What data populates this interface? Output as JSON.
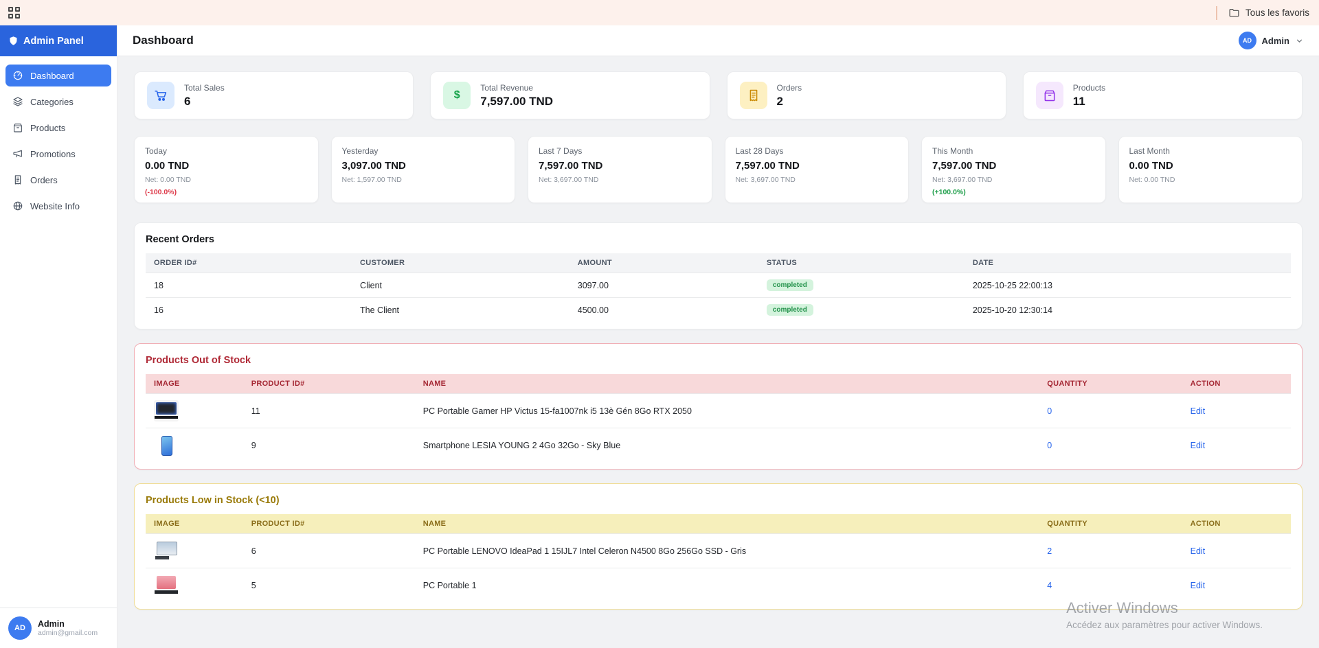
{
  "browser_bar": {
    "favorites_label": "Tous les favoris"
  },
  "sidebar": {
    "title": "Admin Panel",
    "items": [
      {
        "label": "Dashboard",
        "icon": "speedometer-icon",
        "active": true
      },
      {
        "label": "Categories",
        "icon": "layers-icon",
        "active": false
      },
      {
        "label": "Products",
        "icon": "box-icon",
        "active": false
      },
      {
        "label": "Promotions",
        "icon": "megaphone-icon",
        "active": false
      },
      {
        "label": "Orders",
        "icon": "receipt-icon",
        "active": false
      },
      {
        "label": "Website Info",
        "icon": "globe-icon",
        "active": false
      }
    ],
    "user": {
      "initials": "AD",
      "name": "Admin",
      "email": "admin@gmail.com"
    }
  },
  "header": {
    "title": "Dashboard",
    "user": {
      "initials": "AD",
      "name": "Admin"
    }
  },
  "stats": [
    {
      "label": "Total Sales",
      "value": "6",
      "icon": "cart-icon",
      "color": "#2563eb",
      "bg": "#dbeafe"
    },
    {
      "label": "Total Revenue",
      "value": "7,597.00 TND",
      "icon": "dollar-icon",
      "color": "#16a34a",
      "bg": "#d9f7e4"
    },
    {
      "label": "Orders",
      "value": "2",
      "icon": "receipt-icon",
      "color": "#ca8a04",
      "bg": "#fdf0c2"
    },
    {
      "label": "Products",
      "value": "11",
      "icon": "box-icon",
      "color": "#9333ea",
      "bg": "#f5e8fd"
    }
  ],
  "periods": [
    {
      "label": "Today",
      "value": "0.00 TND",
      "net": "Net: 0.00 TND",
      "change": "(-100.0%)",
      "change_color": "#dc3545"
    },
    {
      "label": "Yesterday",
      "value": "3,097.00 TND",
      "net": "Net: 1,597.00 TND",
      "change": "",
      "change_color": ""
    },
    {
      "label": "Last 7 Days",
      "value": "7,597.00 TND",
      "net": "Net: 3,697.00 TND",
      "change": "",
      "change_color": ""
    },
    {
      "label": "Last 28 Days",
      "value": "7,597.00 TND",
      "net": "Net: 3,697.00 TND",
      "change": "",
      "change_color": ""
    },
    {
      "label": "This Month",
      "value": "7,597.00 TND",
      "net": "Net: 3,697.00 TND",
      "change": "(+100.0%)",
      "change_color": "#1e9e4a"
    },
    {
      "label": "Last Month",
      "value": "0.00 TND",
      "net": "Net: 0.00 TND",
      "change": "",
      "change_color": ""
    }
  ],
  "recent_orders": {
    "title": "Recent Orders",
    "columns": [
      "ORDER ID#",
      "CUSTOMER",
      "AMOUNT",
      "STATUS",
      "DATE"
    ],
    "rows": [
      {
        "id": "18",
        "customer": "Client",
        "amount": "3097.00",
        "status": "completed",
        "date": "2025-10-25 22:00:13"
      },
      {
        "id": "16",
        "customer": "The Client",
        "amount": "4500.00",
        "status": "completed",
        "date": "2025-10-20 12:30:14"
      }
    ]
  },
  "out_of_stock": {
    "title": "Products Out of Stock",
    "columns": [
      "IMAGE",
      "PRODUCT ID#",
      "NAME",
      "QUANTITY",
      "ACTION"
    ],
    "rows": [
      {
        "thumb": "hp-victus-laptop-photo",
        "id": "11",
        "name": "PC Portable Gamer HP Victus 15-fa1007nk i5 13è Gén 8Go RTX 2050",
        "quantity": "0",
        "action": "Edit"
      },
      {
        "thumb": "lesia-smartphone-photo",
        "id": "9",
        "name": "Smartphone LESIA YOUNG 2 4Go 32Go - Sky Blue",
        "quantity": "0",
        "action": "Edit"
      }
    ]
  },
  "low_stock": {
    "title": "Products Low in Stock (<10)",
    "columns": [
      "IMAGE",
      "PRODUCT ID#",
      "NAME",
      "QUANTITY",
      "ACTION"
    ],
    "rows": [
      {
        "thumb": "lenovo-ideapad-laptop-photo",
        "id": "6",
        "name": "PC Portable LENOVO IdeaPad 1 15IJL7 Intel Celeron N4500 8Go 256Go SSD - Gris",
        "quantity": "2",
        "action": "Edit"
      },
      {
        "thumb": "pc-portable-1-photo",
        "id": "5",
        "name": "PC Portable 1",
        "quantity": "4",
        "action": "Edit"
      }
    ]
  },
  "watermark": {
    "line1": "Activer Windows",
    "line2": "Accédez aux paramètres pour activer Windows."
  }
}
